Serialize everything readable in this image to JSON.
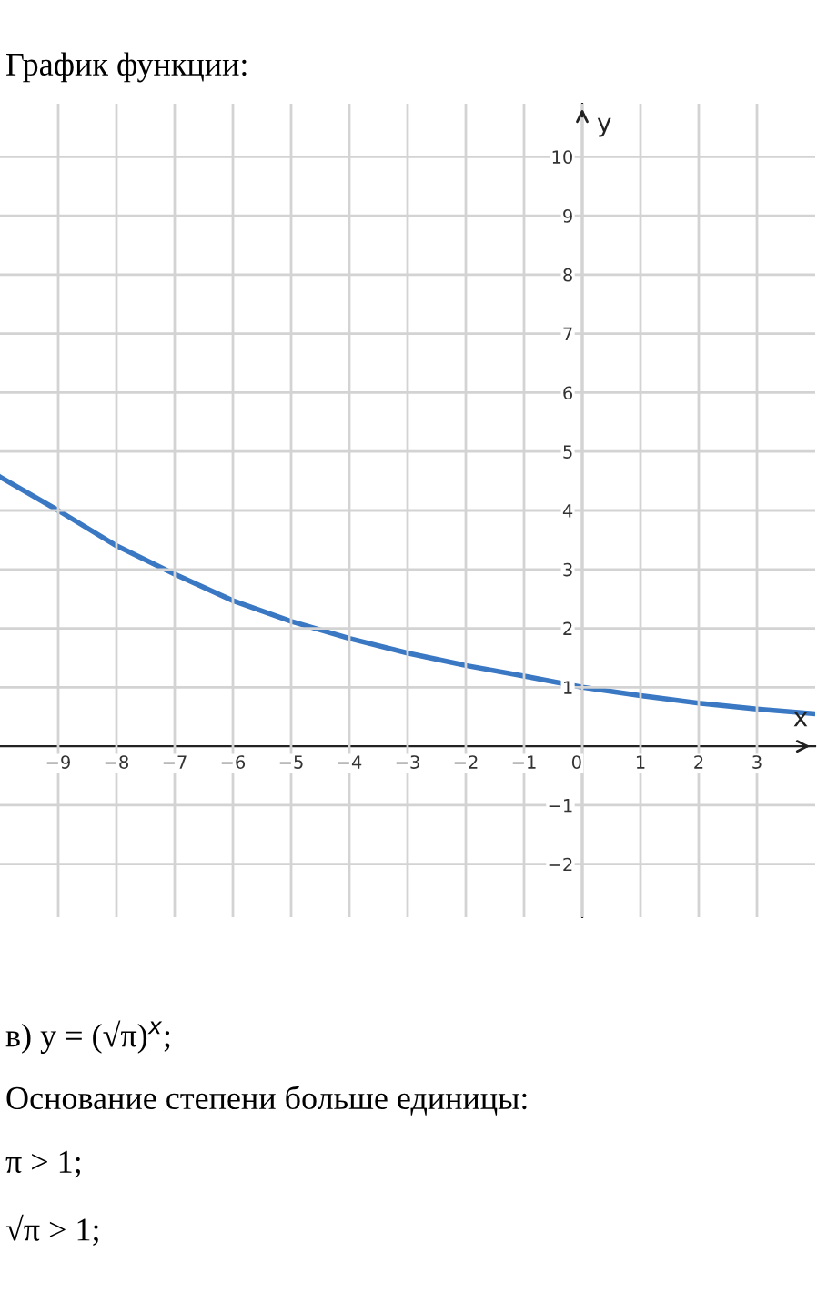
{
  "chart_data": {
    "type": "line",
    "title": "График функции:",
    "xlabel": "x",
    "ylabel": "y",
    "x": [
      -10,
      -9,
      -8,
      -7,
      -6,
      -5,
      -4,
      -3,
      -2,
      -1,
      0,
      1,
      2,
      3,
      4
    ],
    "series": [
      {
        "color": "#3a78c3",
        "values": [
          4.57,
          4.0,
          3.4,
          2.92,
          2.47,
          2.12,
          1.83,
          1.58,
          1.37,
          1.19,
          1.0,
          0.86,
          0.73,
          0.63,
          0.55
        ]
      }
    ],
    "xlim": [
      -10,
      4
    ],
    "ylim": [
      -2.9,
      10.9
    ],
    "xticks": [
      {
        "value": -9,
        "label": "−9"
      },
      {
        "value": -8,
        "label": "−8"
      },
      {
        "value": -7,
        "label": "−7"
      },
      {
        "value": -6,
        "label": "−6"
      },
      {
        "value": -5,
        "label": "−5"
      },
      {
        "value": -4,
        "label": "−4"
      },
      {
        "value": -3,
        "label": "−3"
      },
      {
        "value": -2,
        "label": "−2"
      },
      {
        "value": -1,
        "label": "−1"
      },
      0,
      1,
      2,
      3
    ],
    "yticks": [
      {
        "value": -2,
        "label": "−2"
      },
      {
        "value": -1,
        "label": "−1"
      },
      1,
      2,
      3,
      4,
      5,
      6,
      7,
      8,
      9,
      10
    ],
    "grid": true,
    "marker": "none",
    "line_style": "solid",
    "annotations": [
      "в) y = (√π)$^{x}$;",
      "Основание степени больше единицы:",
      "π > 1;",
      "√π > 1;"
    ]
  }
}
